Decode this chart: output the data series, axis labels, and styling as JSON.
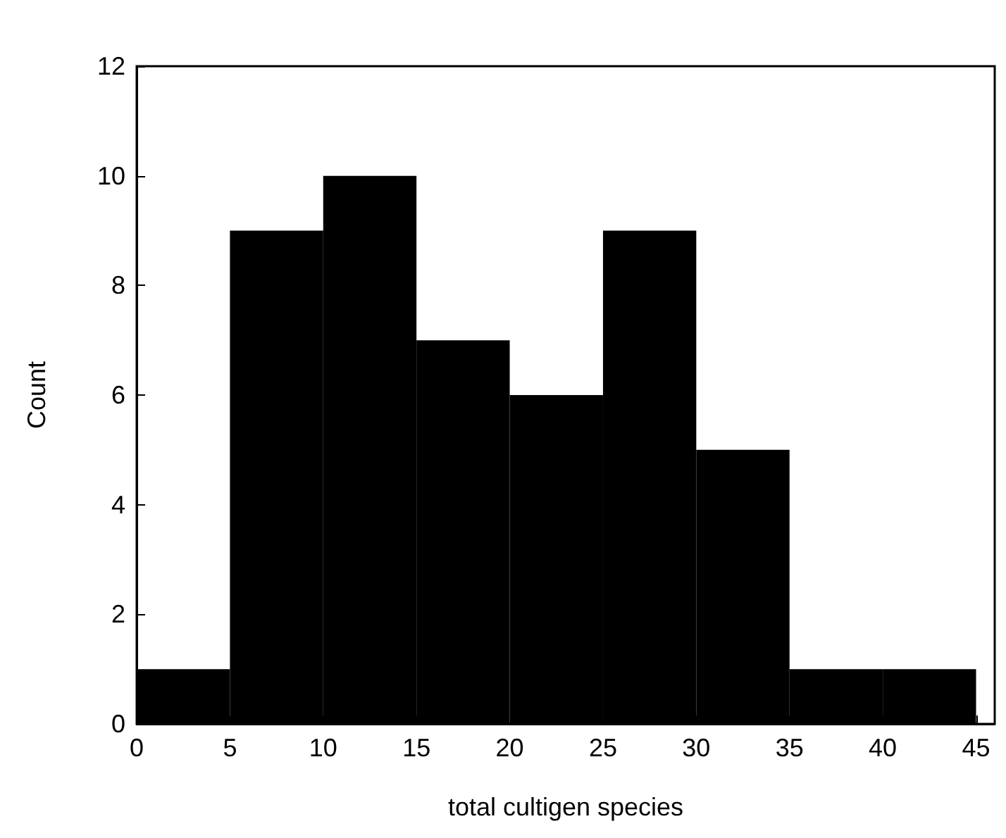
{
  "chart_data": {
    "type": "histogram",
    "xlabel": "total cultigen species",
    "ylabel": "Count",
    "bins": [
      0,
      5,
      10,
      15,
      20,
      25,
      30,
      35,
      40,
      45
    ],
    "values": [
      1,
      9,
      10,
      7,
      6,
      9,
      5,
      1,
      1
    ],
    "color": "#000000",
    "xlim": [
      0,
      46
    ],
    "xticks": [
      0,
      5,
      10,
      15,
      20,
      25,
      30,
      35,
      40,
      45
    ],
    "ylim": [
      0,
      12
    ],
    "yticks": [
      0,
      2,
      4,
      6,
      8,
      10,
      12
    ],
    "grid": false
  }
}
